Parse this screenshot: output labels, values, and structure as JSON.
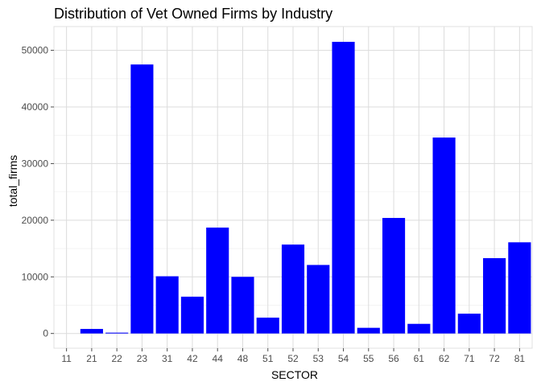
{
  "chart_data": {
    "type": "bar",
    "title": "Distribution of Vet Owned Firms by Industry",
    "xlabel": "SECTOR",
    "ylabel": "total_firms",
    "categories": [
      "11",
      "21",
      "22",
      "23",
      "31",
      "42",
      "44",
      "48",
      "51",
      "52",
      "53",
      "54",
      "55",
      "56",
      "61",
      "62",
      "71",
      "72",
      "81"
    ],
    "values": [
      0,
      800,
      150,
      47500,
      10100,
      6500,
      18700,
      10000,
      2800,
      15700,
      12100,
      51500,
      1000,
      20400,
      1700,
      34600,
      3500,
      13300,
      16100
    ],
    "ylim": [
      -2600,
      54200
    ],
    "yticks": [
      0,
      10000,
      20000,
      30000,
      40000,
      50000
    ],
    "bar_color": "#0000ff",
    "grid": true,
    "legend": "none"
  }
}
